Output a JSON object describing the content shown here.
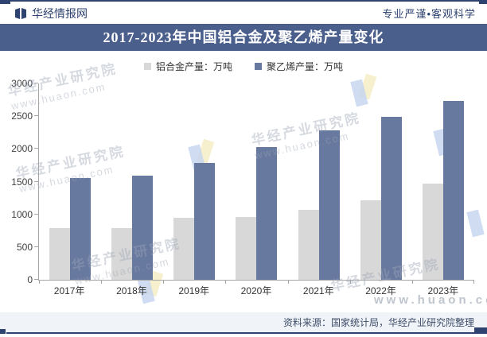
{
  "page": {
    "brand": {
      "logo_text": "华经情报网",
      "slogan": "专业严谨•客观科学"
    },
    "footer": {
      "source": "资料来源：国家统计局，华经产业研究院整理"
    },
    "watermark": {
      "cn": "华经产业研究院",
      "url": "www.huaon.com"
    }
  },
  "chart_data": {
    "type": "bar",
    "title": "2017-2023年中国铝合金及聚乙烯产量变化",
    "categories": [
      "2017年",
      "2018年",
      "2019年",
      "2020年",
      "2021年",
      "2022年",
      "2023年"
    ],
    "series": [
      {
        "name": "铝合金产量：万吨",
        "color": "#d8d8d8",
        "values": [
          790,
          795,
          945,
          965,
          1070,
          1220,
          1465
        ]
      },
      {
        "name": "聚乙烯产量：万吨",
        "color": "#6879a0",
        "values": [
          1560,
          1590,
          1790,
          2030,
          2280,
          2490,
          2730
        ]
      }
    ],
    "xlabel": "",
    "ylabel": "",
    "ylim": [
      0,
      3000
    ],
    "y_ticks": [
      0,
      500,
      1000,
      1500,
      2000,
      2500,
      3000
    ],
    "grid": false,
    "legend_position": "top",
    "axis_color": "#a6a6a6",
    "title_band_color": "#4b5f8d",
    "accent_navy": "#2e4370"
  }
}
